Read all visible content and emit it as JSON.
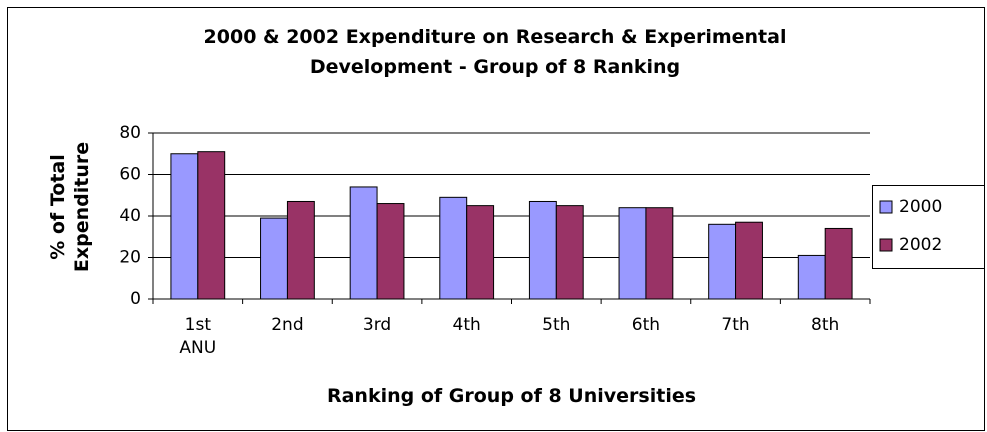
{
  "chart_data": {
    "type": "bar",
    "title": "2000 & 2002 Expenditure on Research & Experimental Development - Group of 8 Ranking",
    "x_label": "Ranking of Group of 8 Universities",
    "y_label": "% of Total Expenditure",
    "categories": [
      "1st ANU",
      "2nd",
      "3rd",
      "4th",
      "5th",
      "6th",
      "7th",
      "8th"
    ],
    "series": [
      {
        "name": "2000",
        "color": "#9999ff",
        "values": [
          70,
          39,
          54,
          49,
          47,
          44,
          36,
          21
        ]
      },
      {
        "name": "2002",
        "color": "#993366",
        "values": [
          71,
          47,
          46,
          45,
          45,
          44,
          37,
          34
        ]
      }
    ],
    "ylim": [
      0,
      80
    ],
    "yticks": [
      0,
      20,
      40,
      60,
      80
    ],
    "grid": true,
    "legend": "right"
  }
}
